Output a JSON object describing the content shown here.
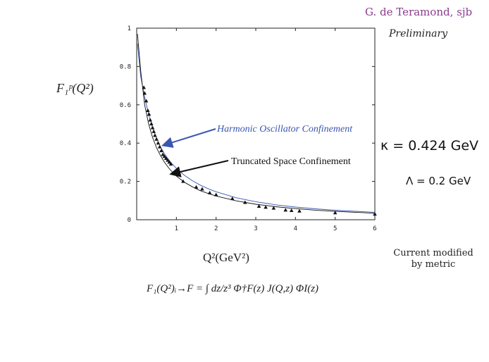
{
  "header": {
    "author": "G. de Teramond, sjb",
    "status": "Preliminary"
  },
  "labels": {
    "y_axis": "F₁ᵖ(Q²)",
    "x_axis": "Q²(GeV²)",
    "kappa": "κ = 0.424 GeV",
    "lambda": "Λ = 0.2 GeV",
    "current_note_line1": "Current modified",
    "current_note_line2": "by metric",
    "formula": "F₁(Q²)ᵢ→F = ∫ dz/z³ Φ†F(z) J(Q,z) ΦI(z)"
  },
  "colors": {
    "harmonic": "#3a56b0",
    "truncated": "#111111",
    "author": "#8b3b8f"
  },
  "chart_data": {
    "type": "scatter",
    "xlim": [
      0,
      6
    ],
    "ylim": [
      0,
      1
    ],
    "xticks": [
      "1",
      "2",
      "3",
      "4",
      "5",
      "6"
    ],
    "yticks": [
      "0",
      "0.2",
      "0.4",
      "0.6",
      "0.8",
      "1"
    ],
    "annotations": [
      {
        "text": "Harmonic Oscillator Confinement",
        "target": [
          0.62,
          0.39
        ],
        "color": "#3a56b0"
      },
      {
        "text": "Truncated Space Confinement",
        "target": [
          0.82,
          0.24
        ],
        "color": "#111111"
      }
    ],
    "series": [
      {
        "values": [
          [
            0.18,
            0.69
          ],
          [
            0.2,
            0.66
          ],
          [
            0.24,
            0.62
          ],
          [
            0.28,
            0.57
          ],
          [
            0.31,
            0.55
          ],
          [
            0.34,
            0.52
          ],
          [
            0.37,
            0.5
          ],
          [
            0.4,
            0.48
          ],
          [
            0.43,
            0.46
          ],
          [
            0.46,
            0.44
          ],
          [
            0.5,
            0.42
          ],
          [
            0.54,
            0.4
          ],
          [
            0.58,
            0.38
          ],
          [
            0.62,
            0.36
          ],
          [
            0.66,
            0.34
          ],
          [
            0.7,
            0.33
          ],
          [
            0.74,
            0.32
          ],
          [
            0.78,
            0.31
          ],
          [
            0.82,
            0.3
          ],
          [
            0.86,
            0.29
          ],
          [
            1.17,
            0.2
          ],
          [
            1.5,
            0.17
          ],
          [
            1.65,
            0.16
          ],
          [
            1.84,
            0.14
          ],
          [
            2.0,
            0.13
          ],
          [
            2.41,
            0.11
          ],
          [
            2.73,
            0.09
          ],
          [
            3.08,
            0.07
          ],
          [
            3.25,
            0.065
          ],
          [
            3.45,
            0.06
          ],
          [
            3.75,
            0.05
          ],
          [
            3.9,
            0.048
          ],
          [
            4.1,
            0.045
          ],
          [
            5.0,
            0.036
          ],
          [
            6.0,
            0.029
          ]
        ]
      },
      {
        "values": [
          [
            0.02,
            0.92
          ],
          [
            0.1,
            0.75
          ],
          [
            0.2,
            0.64
          ],
          [
            0.3,
            0.55
          ],
          [
            0.4,
            0.48
          ],
          [
            0.5,
            0.425
          ],
          [
            0.6,
            0.38
          ],
          [
            0.7,
            0.345
          ],
          [
            0.8,
            0.315
          ],
          [
            0.9,
            0.29
          ],
          [
            1.0,
            0.268
          ],
          [
            1.2,
            0.232
          ],
          [
            1.4,
            0.204
          ],
          [
            1.6,
            0.181
          ],
          [
            1.8,
            0.162
          ],
          [
            2.0,
            0.146
          ],
          [
            2.5,
            0.115
          ],
          [
            3.0,
            0.094
          ],
          [
            3.5,
            0.078
          ],
          [
            4.0,
            0.066
          ],
          [
            4.5,
            0.057
          ],
          [
            5.0,
            0.05
          ],
          [
            5.5,
            0.044
          ],
          [
            6.0,
            0.039
          ]
        ]
      },
      {
        "values": [
          [
            0.02,
            0.97
          ],
          [
            0.1,
            0.78
          ],
          [
            0.2,
            0.6
          ],
          [
            0.3,
            0.5
          ],
          [
            0.4,
            0.43
          ],
          [
            0.5,
            0.375
          ],
          [
            0.6,
            0.335
          ],
          [
            0.7,
            0.3
          ],
          [
            0.8,
            0.272
          ],
          [
            0.9,
            0.248
          ],
          [
            1.0,
            0.228
          ],
          [
            1.2,
            0.196
          ],
          [
            1.4,
            0.172
          ],
          [
            1.6,
            0.152
          ],
          [
            1.8,
            0.137
          ],
          [
            2.0,
            0.124
          ],
          [
            2.5,
            0.099
          ],
          [
            3.0,
            0.081
          ],
          [
            3.5,
            0.068
          ],
          [
            4.0,
            0.058
          ],
          [
            4.5,
            0.05
          ],
          [
            5.0,
            0.044
          ],
          [
            5.5,
            0.039
          ],
          [
            6.0,
            0.034
          ]
        ]
      }
    ]
  }
}
